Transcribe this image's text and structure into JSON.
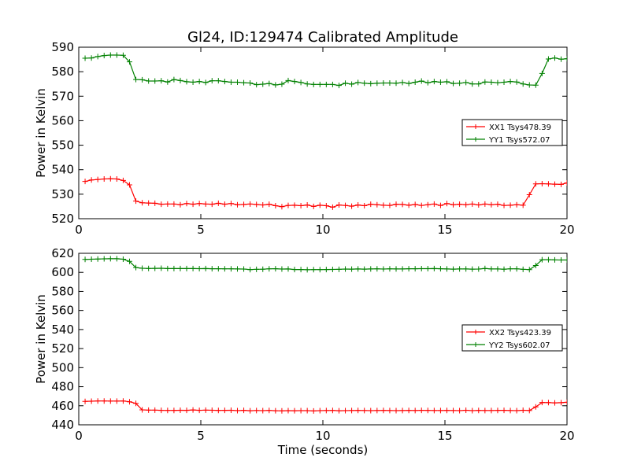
{
  "figure_title": "Gl24, ID:129474 Calibrated Amplitude",
  "chart_data": [
    {
      "type": "line",
      "title": "Gl24, ID:129474 Calibrated Amplitude",
      "xlabel": "",
      "ylabel": "Power in Kelvin",
      "xlim": [
        0,
        20
      ],
      "ylim": [
        520,
        590
      ],
      "xticks": [
        0,
        5,
        10,
        15,
        20
      ],
      "yticks": [
        520,
        530,
        540,
        550,
        560,
        570,
        580,
        590
      ],
      "grid": false,
      "legend_position": "center-right",
      "x": [
        0.26,
        0.52,
        0.78,
        1.04,
        1.3,
        1.56,
        1.82,
        2.08,
        2.34,
        2.6,
        2.86,
        3.12,
        3.38,
        3.64,
        3.9,
        4.16,
        4.42,
        4.68,
        4.94,
        5.2,
        5.46,
        5.72,
        5.98,
        6.24,
        6.5,
        6.76,
        7.02,
        7.28,
        7.54,
        7.8,
        8.06,
        8.32,
        8.58,
        8.84,
        9.1,
        9.36,
        9.62,
        9.88,
        10.14,
        10.4,
        10.66,
        10.92,
        11.18,
        11.44,
        11.7,
        11.96,
        12.22,
        12.48,
        12.74,
        13.0,
        13.26,
        13.52,
        13.78,
        14.04,
        14.3,
        14.56,
        14.82,
        15.08,
        15.34,
        15.6,
        15.86,
        16.12,
        16.38,
        16.64,
        16.9,
        17.16,
        17.42,
        17.68,
        17.94,
        18.2,
        18.46,
        18.72,
        18.98,
        19.24,
        19.5,
        19.76,
        20.0
      ],
      "series": [
        {
          "name": "XX1 Tsys478.39",
          "color": "#ff0000",
          "values": [
            535.2,
            535.8,
            536.0,
            536.2,
            536.3,
            536.2,
            535.6,
            533.8,
            527.2,
            526.5,
            526.4,
            526.3,
            525.9,
            526.0,
            526.0,
            525.7,
            526.2,
            525.9,
            526.2,
            526.0,
            525.9,
            526.3,
            525.9,
            526.2,
            525.7,
            525.8,
            526.0,
            525.8,
            525.6,
            525.9,
            525.3,
            524.9,
            525.4,
            525.5,
            525.3,
            525.6,
            525.0,
            525.5,
            525.3,
            524.7,
            525.6,
            525.4,
            525.1,
            525.6,
            525.3,
            525.9,
            525.7,
            525.5,
            525.4,
            525.9,
            525.8,
            525.5,
            525.8,
            525.4,
            525.7,
            526.0,
            525.4,
            526.2,
            525.7,
            525.9,
            525.7,
            526.0,
            525.6,
            526.0,
            525.7,
            525.9,
            525.4,
            525.5,
            525.7,
            525.5,
            529.8,
            534.2,
            534.3,
            534.2,
            534.1,
            534.0,
            534.6
          ]
        },
        {
          "name": "YY1 Tsys572.07",
          "color": "#008000",
          "values": [
            585.5,
            585.6,
            586.2,
            586.6,
            586.8,
            586.8,
            586.7,
            584.0,
            576.8,
            576.7,
            576.2,
            576.2,
            576.3,
            575.8,
            576.8,
            576.4,
            575.9,
            575.7,
            576.0,
            575.6,
            576.3,
            576.3,
            576.0,
            575.7,
            575.7,
            575.5,
            575.4,
            574.7,
            574.9,
            575.2,
            574.6,
            574.9,
            576.4,
            576.0,
            575.6,
            575.0,
            574.8,
            574.8,
            574.8,
            574.8,
            574.4,
            575.3,
            574.9,
            575.6,
            575.3,
            575.1,
            575.3,
            575.4,
            575.4,
            575.3,
            575.6,
            575.2,
            575.7,
            576.2,
            575.5,
            576.0,
            575.7,
            575.9,
            575.2,
            575.3,
            575.6,
            575.0,
            575.0,
            575.8,
            575.7,
            575.5,
            575.7,
            576.0,
            575.8,
            575.0,
            574.6,
            574.5,
            579.3,
            585.2,
            585.6,
            585.1,
            585.3
          ]
        }
      ]
    },
    {
      "type": "line",
      "title": "",
      "xlabel": "Time (seconds)",
      "ylabel": "Power in Kelvin",
      "xlim": [
        0,
        20
      ],
      "ylim": [
        440,
        620
      ],
      "xticks": [
        0,
        5,
        10,
        15,
        20
      ],
      "yticks": [
        440,
        460,
        480,
        500,
        520,
        540,
        560,
        580,
        600,
        620
      ],
      "grid": false,
      "legend_position": "center-right",
      "x": [
        0.26,
        0.52,
        0.78,
        1.04,
        1.3,
        1.56,
        1.82,
        2.08,
        2.34,
        2.6,
        2.86,
        3.12,
        3.38,
        3.64,
        3.9,
        4.16,
        4.42,
        4.68,
        4.94,
        5.2,
        5.46,
        5.72,
        5.98,
        6.24,
        6.5,
        6.76,
        7.02,
        7.28,
        7.54,
        7.8,
        8.06,
        8.32,
        8.58,
        8.84,
        9.1,
        9.36,
        9.62,
        9.88,
        10.14,
        10.4,
        10.66,
        10.92,
        11.18,
        11.44,
        11.7,
        11.96,
        12.22,
        12.48,
        12.74,
        13.0,
        13.26,
        13.52,
        13.78,
        14.04,
        14.3,
        14.56,
        14.82,
        15.08,
        15.34,
        15.6,
        15.86,
        16.12,
        16.38,
        16.64,
        16.9,
        17.16,
        17.42,
        17.68,
        17.94,
        18.2,
        18.46,
        18.72,
        18.98,
        19.24,
        19.5,
        19.76,
        20.0
      ],
      "series": [
        {
          "name": "XX2 Tsys423.39",
          "color": "#ff0000",
          "values": [
            464.6,
            464.8,
            465.0,
            465.0,
            464.9,
            464.9,
            465.0,
            464.2,
            462.5,
            455.7,
            455.4,
            455.4,
            455.2,
            455.1,
            455.1,
            455.3,
            455.2,
            455.6,
            455.2,
            455.4,
            455.3,
            455.1,
            455.2,
            455.3,
            454.9,
            455.2,
            454.8,
            455.0,
            454.9,
            455.1,
            454.8,
            454.7,
            454.9,
            454.8,
            454.9,
            454.9,
            454.6,
            454.9,
            455.0,
            455.1,
            454.8,
            454.9,
            455.0,
            455.1,
            455.0,
            454.9,
            455.0,
            455.1,
            455.0,
            454.9,
            455.0,
            455.1,
            455.0,
            455.2,
            455.1,
            455.0,
            455.0,
            455.1,
            455.0,
            454.9,
            455.3,
            454.9,
            455.1,
            455.0,
            455.0,
            455.1,
            455.2,
            455.0,
            454.9,
            455.3,
            455.0,
            458.8,
            463.4,
            463.3,
            463.0,
            463.2,
            463.6
          ]
        },
        {
          "name": "YY2 Tsys602.07",
          "color": "#008000",
          "values": [
            613.6,
            613.8,
            614.0,
            614.2,
            614.3,
            614.3,
            613.8,
            611.5,
            605.0,
            604.3,
            604.1,
            604.2,
            604.3,
            604.0,
            604.0,
            604.0,
            604.0,
            604.0,
            603.9,
            604.0,
            603.8,
            603.8,
            603.7,
            603.7,
            603.6,
            603.5,
            602.9,
            603.2,
            603.3,
            603.7,
            603.8,
            603.5,
            603.6,
            603.0,
            603.0,
            602.8,
            602.9,
            602.9,
            603.0,
            603.1,
            603.2,
            603.5,
            603.4,
            603.6,
            603.4,
            603.6,
            603.7,
            603.5,
            603.7,
            603.6,
            603.6,
            603.8,
            603.8,
            603.9,
            603.9,
            604.0,
            603.8,
            603.6,
            603.4,
            603.6,
            603.6,
            603.4,
            603.5,
            604.1,
            603.6,
            603.6,
            603.3,
            603.7,
            603.7,
            603.2,
            602.9,
            607.2,
            613.3,
            613.3,
            613.1,
            613.0,
            613.0
          ]
        }
      ]
    }
  ]
}
